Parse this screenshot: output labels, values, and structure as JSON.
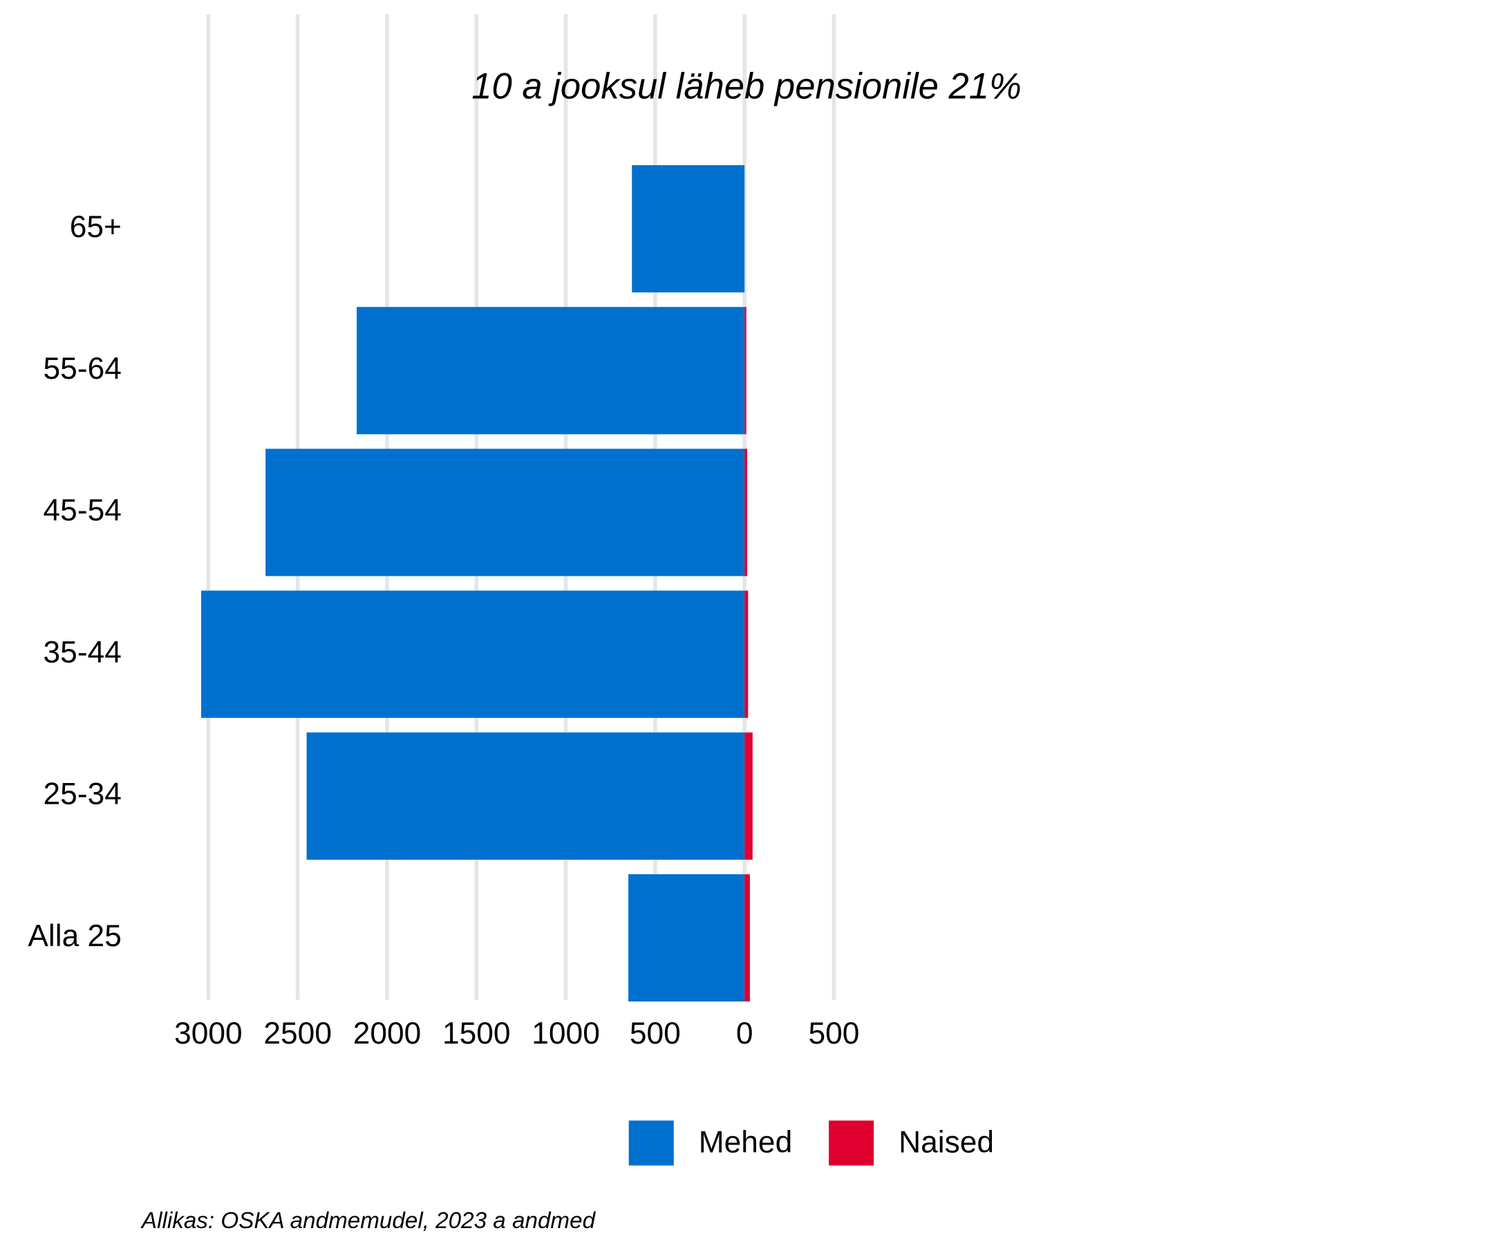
{
  "chart_data": {
    "type": "bar",
    "orientation": "horizontal",
    "stacked": true,
    "title": "10 a jooksul läheb pensionile 21%",
    "source": "Allikas: OSKA andmemudel, 2023 a andmed",
    "categories": [
      "65+",
      "55-64",
      "45-54",
      "35-44",
      "25-34",
      "Alla 25"
    ],
    "series": [
      {
        "name": "Mehed",
        "color": "#0070cf",
        "values": [
          -630,
          -2170,
          -2680,
          -3040,
          -2450,
          -650
        ]
      },
      {
        "name": "Naised",
        "color": "#e0002f",
        "values": [
          0,
          10,
          15,
          20,
          45,
          30
        ]
      }
    ],
    "xlim": [
      -3100,
      600
    ],
    "xticks": [
      {
        "value": -3000,
        "label": "3000"
      },
      {
        "value": -2500,
        "label": "2500"
      },
      {
        "value": -2000,
        "label": "2000"
      },
      {
        "value": -1500,
        "label": "1500"
      },
      {
        "value": -1000,
        "label": "1000"
      },
      {
        "value": -500,
        "label": "500"
      },
      0,
      500
    ],
    "grid": true,
    "title_color": "#b0262d"
  }
}
